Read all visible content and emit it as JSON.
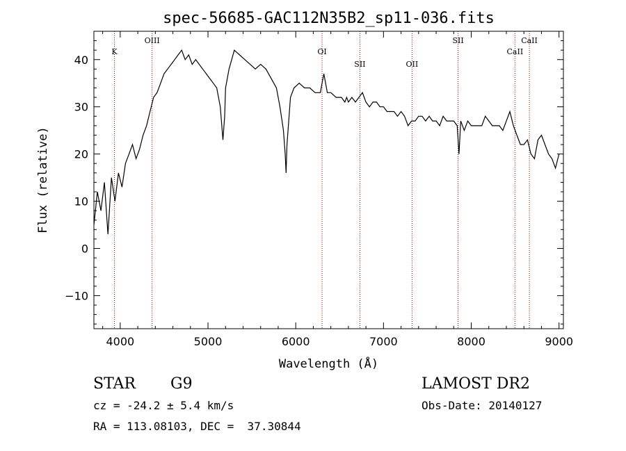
{
  "chart_data": {
    "type": "line",
    "title": "spec-56685-GAC112N35B2_sp11-036.fits",
    "xlabel": "Wavelength (Å)",
    "ylabel": "Flux (relative)",
    "xlim": [
      3700,
      9050
    ],
    "ylim": [
      -17,
      46
    ],
    "xticks": [
      4000,
      5000,
      6000,
      7000,
      8000,
      9000
    ],
    "yticks": [
      -10,
      0,
      10,
      20,
      30,
      40
    ],
    "grid": false,
    "series": [
      {
        "x": [
          3700,
          3740,
          3780,
          3820,
          3860,
          3900,
          3940,
          3980,
          4020,
          4060,
          4100,
          4140,
          4180,
          4220,
          4260,
          4300,
          4340,
          4380,
          4420,
          4460,
          4500,
          4540,
          4580,
          4620,
          4660,
          4700,
          4740,
          4780,
          4820,
          4860,
          4900,
          4940,
          4980,
          5020,
          5060,
          5100,
          5140,
          5170,
          5190,
          5200,
          5240,
          5300,
          5360,
          5420,
          5480,
          5540,
          5600,
          5660,
          5720,
          5780,
          5820,
          5860,
          5880,
          5890,
          5900,
          5940,
          5980,
          6040,
          6100,
          6160,
          6220,
          6280,
          6320,
          6360,
          6400,
          6460,
          6520,
          6560,
          6580,
          6600,
          6640,
          6680,
          6720,
          6760,
          6800,
          6840,
          6880,
          6920,
          6960,
          7000,
          7040,
          7080,
          7120,
          7160,
          7200,
          7240,
          7280,
          7320,
          7360,
          7400,
          7440,
          7480,
          7520,
          7560,
          7600,
          7640,
          7680,
          7720,
          7760,
          7800,
          7840,
          7860,
          7880,
          7920,
          7960,
          8000,
          8040,
          8080,
          8120,
          8160,
          8200,
          8240,
          8280,
          8320,
          8360,
          8400,
          8440,
          8480,
          8520,
          8560,
          8600,
          8640,
          8680,
          8720,
          8760,
          8800,
          8840,
          8880,
          8920,
          8960,
          9000
        ],
        "values": [
          5,
          12,
          8,
          14,
          3,
          15,
          10,
          16,
          13,
          18,
          20,
          22,
          19,
          21,
          24,
          26,
          29,
          32,
          33,
          35,
          37,
          38,
          39,
          40,
          41,
          42,
          40,
          41,
          39,
          40,
          39,
          38,
          37,
          36,
          35,
          34,
          30,
          23,
          28,
          34,
          38,
          42,
          41,
          40,
          39,
          38,
          39,
          38,
          36,
          34,
          30,
          25,
          20,
          16,
          22,
          32,
          34,
          35,
          34,
          34,
          33,
          33,
          37,
          33,
          33,
          32,
          32,
          31,
          32,
          31,
          32,
          31,
          32,
          33,
          31,
          30,
          31,
          31,
          30,
          30,
          29,
          29,
          29,
          28,
          29,
          28,
          26,
          27,
          27,
          28,
          28,
          27,
          28,
          27,
          27,
          26,
          28,
          27,
          27,
          27,
          26,
          20,
          27,
          25,
          27,
          26,
          26,
          26,
          26,
          28,
          27,
          26,
          26,
          26,
          25,
          27,
          29,
          26,
          24,
          22,
          22,
          23,
          20,
          19,
          23,
          24,
          22,
          20,
          19,
          17,
          20
        ]
      }
    ],
    "annotations": [
      {
        "label": "K",
        "x": 3934,
        "row": "low"
      },
      {
        "label": "OIII",
        "x": 4363,
        "row": "high"
      },
      {
        "label": "OI",
        "x": 6300,
        "row": "low"
      },
      {
        "label": "SII",
        "x": 6731,
        "row": "lower"
      },
      {
        "label": "OII",
        "x": 7325,
        "row": "lower"
      },
      {
        "label": "SII",
        "x": 7850,
        "row": "high"
      },
      {
        "label": "CaII",
        "x": 8498,
        "row": "low"
      },
      {
        "label": "CaII",
        "x": 8662,
        "row": "high"
      }
    ],
    "line_color": "#000000",
    "annotation_color": "#8b0000"
  },
  "info": {
    "class": "STAR",
    "subclass": "G9",
    "survey": "LAMOST DR2",
    "cz": "cz = -24.2 ± 5.4 km/s",
    "obs_date": "Obs-Date: 20140127",
    "coords": "RA = 113.08103, DEC =  37.30844"
  }
}
